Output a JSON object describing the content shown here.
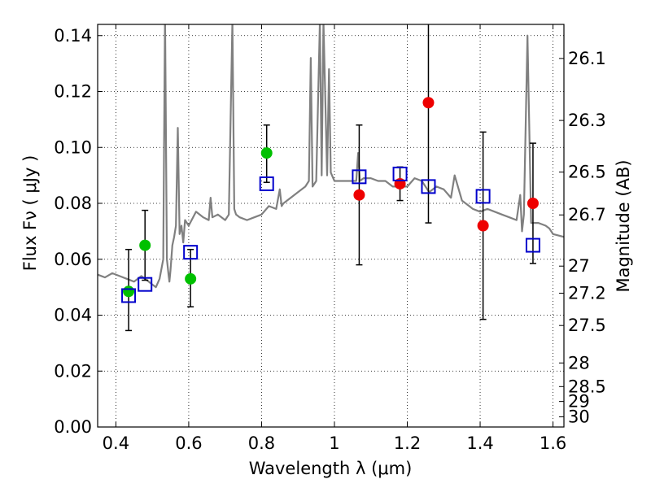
{
  "chart_data": {
    "type": "scatter",
    "xlabel": "Wavelength  λ (μm)",
    "ylabel": "Flux  Fν ( μJy )",
    "ylabel_right": "Magnitude (AB)",
    "xlim": [
      0.35,
      1.63
    ],
    "ylim": [
      0.0,
      0.144
    ],
    "x_ticks": [
      0.4,
      0.6,
      0.8,
      1.0,
      1.2,
      1.4,
      1.6
    ],
    "x_tick_labels": [
      "0.4",
      "0.6",
      "0.8",
      "1",
      "1.2",
      "1.4",
      "1.6"
    ],
    "y_ticks": [
      0.0,
      0.02,
      0.04,
      0.06,
      0.08,
      0.1,
      0.12,
      0.14
    ],
    "y_tick_labels": [
      "0.00",
      "0.02",
      "0.04",
      "0.06",
      "0.08",
      "0.10",
      "0.12",
      "0.14"
    ],
    "right_ticks": [
      26.1,
      26.3,
      26.5,
      26.7,
      27,
      27.2,
      27.5,
      28,
      28.5,
      29,
      30
    ],
    "right_tick_labels": [
      "26.1",
      "26.3",
      "26.5",
      "26.7",
      "27",
      "27.2",
      "27.5",
      "28",
      "28.5",
      "29",
      "30"
    ],
    "grid": true,
    "series": [
      {
        "marker": "circle",
        "color": "#00c000",
        "points": [
          {
            "x": 0.435,
            "y": 0.0485
          },
          {
            "x": 0.48,
            "y": 0.065
          },
          {
            "x": 0.605,
            "y": 0.053
          },
          {
            "x": 0.814,
            "y": 0.098
          }
        ]
      },
      {
        "marker": "circle",
        "color": "#ee0000",
        "points": [
          {
            "x": 1.068,
            "y": 0.083
          },
          {
            "x": 1.18,
            "y": 0.087
          },
          {
            "x": 1.258,
            "y": 0.116
          },
          {
            "x": 1.408,
            "y": 0.072
          },
          {
            "x": 1.545,
            "y": 0.08
          }
        ]
      },
      {
        "marker": "square",
        "color": "#0000cc",
        "points": [
          {
            "x": 0.435,
            "y": 0.047
          },
          {
            "x": 0.48,
            "y": 0.051
          },
          {
            "x": 0.605,
            "y": 0.0625
          },
          {
            "x": 0.814,
            "y": 0.087
          },
          {
            "x": 1.068,
            "y": 0.0895
          },
          {
            "x": 1.18,
            "y": 0.0905
          },
          {
            "x": 1.258,
            "y": 0.086
          },
          {
            "x": 1.408,
            "y": 0.0825
          },
          {
            "x": 1.545,
            "y": 0.065
          }
        ]
      }
    ],
    "error_bars": [
      {
        "x": 0.435,
        "low": 0.0345,
        "high": 0.0635
      },
      {
        "x": 0.48,
        "low": 0.0525,
        "high": 0.0775
      },
      {
        "x": 0.605,
        "low": 0.043,
        "high": 0.0635
      },
      {
        "x": 0.814,
        "low": 0.0875,
        "high": 0.108
      },
      {
        "x": 1.068,
        "low": 0.058,
        "high": 0.108
      },
      {
        "x": 1.18,
        "low": 0.081,
        "high": 0.093
      },
      {
        "x": 1.258,
        "low": 0.073,
        "high": 0.144
      },
      {
        "x": 1.408,
        "low": 0.0385,
        "high": 0.1055
      },
      {
        "x": 1.545,
        "low": 0.0585,
        "high": 0.1015
      }
    ],
    "spectrum": {
      "color": "#808080",
      "x": [
        0.35,
        0.37,
        0.39,
        0.41,
        0.43,
        0.45,
        0.47,
        0.49,
        0.5,
        0.51,
        0.52,
        0.53,
        0.535,
        0.54,
        0.545,
        0.547,
        0.55,
        0.555,
        0.56,
        0.565,
        0.57,
        0.575,
        0.58,
        0.585,
        0.59,
        0.6,
        0.62,
        0.64,
        0.655,
        0.66,
        0.665,
        0.68,
        0.7,
        0.71,
        0.72,
        0.725,
        0.73,
        0.74,
        0.76,
        0.78,
        0.8,
        0.82,
        0.84,
        0.85,
        0.855,
        0.86,
        0.88,
        0.9,
        0.92,
        0.93,
        0.935,
        0.94,
        0.95,
        0.96,
        0.965,
        0.97,
        0.98,
        0.985,
        0.99,
        1.0,
        1.02,
        1.04,
        1.06,
        1.065,
        1.07,
        1.08,
        1.1,
        1.12,
        1.14,
        1.16,
        1.18,
        1.2,
        1.22,
        1.24,
        1.26,
        1.28,
        1.3,
        1.32,
        1.33,
        1.35,
        1.37,
        1.38,
        1.4,
        1.42,
        1.44,
        1.46,
        1.48,
        1.5,
        1.51,
        1.515,
        1.52,
        1.53,
        1.54,
        1.56,
        1.58,
        1.59,
        1.6,
        1.63
      ],
      "y": [
        0.0545,
        0.0535,
        0.055,
        0.054,
        0.053,
        0.052,
        0.054,
        0.052,
        0.051,
        0.05,
        0.053,
        0.06,
        0.148,
        0.06,
        0.054,
        0.052,
        0.056,
        0.065,
        0.068,
        0.072,
        0.107,
        0.069,
        0.072,
        0.066,
        0.074,
        0.072,
        0.077,
        0.075,
        0.074,
        0.082,
        0.075,
        0.076,
        0.074,
        0.076,
        0.145,
        0.078,
        0.076,
        0.075,
        0.074,
        0.075,
        0.076,
        0.079,
        0.078,
        0.085,
        0.079,
        0.08,
        0.082,
        0.084,
        0.086,
        0.088,
        0.132,
        0.086,
        0.088,
        0.145,
        0.09,
        0.145,
        0.09,
        0.128,
        0.091,
        0.088,
        0.088,
        0.088,
        0.088,
        0.098,
        0.088,
        0.089,
        0.089,
        0.088,
        0.088,
        0.086,
        0.086,
        0.086,
        0.089,
        0.088,
        0.084,
        0.086,
        0.085,
        0.082,
        0.09,
        0.081,
        0.079,
        0.078,
        0.077,
        0.078,
        0.077,
        0.076,
        0.075,
        0.074,
        0.083,
        0.07,
        0.076,
        0.14,
        0.073,
        0.073,
        0.072,
        0.071,
        0.069,
        0.068
      ]
    }
  }
}
